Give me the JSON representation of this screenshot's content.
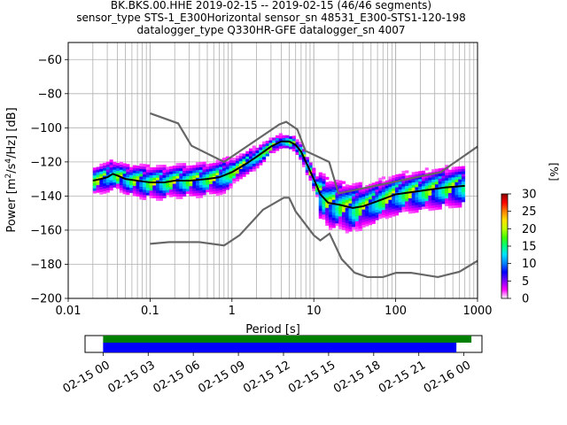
{
  "title": {
    "line1": "BK.BKS.00.HHE   2019-02-15 -- 2019-02-15  (46/46 segments)",
    "line2": "sensor_type STS-1_E300Horizontal sensor_sn 48531_E300-STS1-120-198",
    "line3": "datalogger_type Q330HR-GFE datalogger_sn 4007"
  },
  "chart_data": [
    {
      "type": "heatmap",
      "title": "",
      "xlabel": "Period [s]",
      "ylabel": "Power [m²/s⁴/Hz] [dB]",
      "ylabel_parts": {
        "main": "Power [m",
        "sup1": "2",
        "mid": "/s",
        "sup2": "4",
        "end": "/Hz] [dB]"
      },
      "xscale": "log",
      "xlim": [
        0.01,
        1000
      ],
      "ylim": [
        -200,
        -50
      ],
      "x_ticks": [
        0.01,
        0.1,
        1,
        10,
        100,
        1000
      ],
      "x_tick_labels": [
        "0.01",
        "0.1",
        "1",
        "10",
        "100",
        "1000"
      ],
      "y_ticks": [
        -200,
        -180,
        -160,
        -140,
        -120,
        -100,
        -80,
        -60
      ],
      "y_tick_labels": [
        "−200",
        "−180",
        "−160",
        "−140",
        "−120",
        "−100",
        "−80",
        "−60"
      ],
      "grid": true,
      "colorbar": {
        "label": "[%]",
        "range": [
          0,
          30
        ],
        "ticks": [
          0,
          5,
          10,
          15,
          20,
          25,
          30
        ],
        "colors": [
          "#ffffff",
          "#ff00ff",
          "#7f00ff",
          "#0000ff",
          "#0080ff",
          "#00e0ff",
          "#00ff80",
          "#40ff00",
          "#c0ff00",
          "#ffe000",
          "#ff8000",
          "#ff0000",
          "#8b0000"
        ]
      },
      "series": [
        {
          "role": "median",
          "color": "#000000",
          "points": [
            [
              0.02,
              -131
            ],
            [
              0.025,
              -130
            ],
            [
              0.03,
              -129
            ],
            [
              0.035,
              -127
            ],
            [
              0.04,
              -128
            ],
            [
              0.05,
              -130
            ],
            [
              0.07,
              -131
            ],
            [
              0.1,
              -132
            ],
            [
              0.15,
              -132
            ],
            [
              0.2,
              -131
            ],
            [
              0.3,
              -131
            ],
            [
              0.5,
              -130
            ],
            [
              0.7,
              -129
            ],
            [
              1,
              -126
            ],
            [
              1.5,
              -121
            ],
            [
              2,
              -117
            ],
            [
              3,
              -111
            ],
            [
              4,
              -108
            ],
            [
              5,
              -108
            ],
            [
              6,
              -110
            ],
            [
              7,
              -114
            ],
            [
              8,
              -120
            ],
            [
              10,
              -130
            ],
            [
              12,
              -139
            ],
            [
              15,
              -144
            ],
            [
              20,
              -145
            ],
            [
              30,
              -147
            ],
            [
              40,
              -146
            ],
            [
              60,
              -143
            ],
            [
              100,
              -139
            ],
            [
              200,
              -137
            ],
            [
              400,
              -135
            ],
            [
              700,
              -134
            ]
          ]
        },
        {
          "role": "noise-model-upper",
          "color": "#666666",
          "points": [
            [
              0.1,
              -91.5
            ],
            [
              0.22,
              -97.4
            ],
            [
              0.32,
              -110.5
            ],
            [
              0.8,
              -120
            ],
            [
              3.8,
              -98
            ],
            [
              4.6,
              -96.5
            ],
            [
              6.3,
              -101
            ],
            [
              7.9,
              -113.5
            ],
            [
              15.4,
              -120
            ],
            [
              20,
              -138.5
            ],
            [
              354.8,
              -126
            ],
            [
              1000,
              -111
            ]
          ]
        },
        {
          "role": "noise-model-lower",
          "color": "#666666",
          "points": [
            [
              0.1,
              -168
            ],
            [
              0.17,
              -167
            ],
            [
              0.4,
              -167
            ],
            [
              0.8,
              -169
            ],
            [
              1.24,
              -163
            ],
            [
              2.4,
              -148
            ],
            [
              4.3,
              -141
            ],
            [
              5,
              -141
            ],
            [
              6,
              -149
            ],
            [
              10,
              -163
            ],
            [
              12,
              -166
            ],
            [
              15.6,
              -162
            ],
            [
              21.9,
              -177
            ],
            [
              31.6,
              -185
            ],
            [
              45,
              -187.5
            ],
            [
              70,
              -187.5
            ],
            [
              101,
              -185
            ],
            [
              154,
              -185
            ],
            [
              328,
              -187.5
            ],
            [
              600,
              -184.4
            ],
            [
              1000,
              -178
            ]
          ]
        }
      ]
    },
    {
      "type": "timeline",
      "x_tick_labels": [
        "02-15 00",
        "02-15 03",
        "02-15 06",
        "02-15 09",
        "02-15 12",
        "02-15 15",
        "02-15 18",
        "02-15 21",
        "02-16 00"
      ],
      "x_ticks_hours": [
        0,
        3,
        6,
        9,
        12,
        15,
        18,
        21,
        24
      ],
      "xlim_hours": [
        -1.2,
        25.2
      ],
      "series": [
        {
          "role": "data-coverage",
          "color": "#008000",
          "start_hour": 0,
          "end_hour": 24.5
        },
        {
          "role": "psd-coverage",
          "color": "#0000ff",
          "start_hour": 0,
          "end_hour": 23.5
        }
      ]
    }
  ]
}
